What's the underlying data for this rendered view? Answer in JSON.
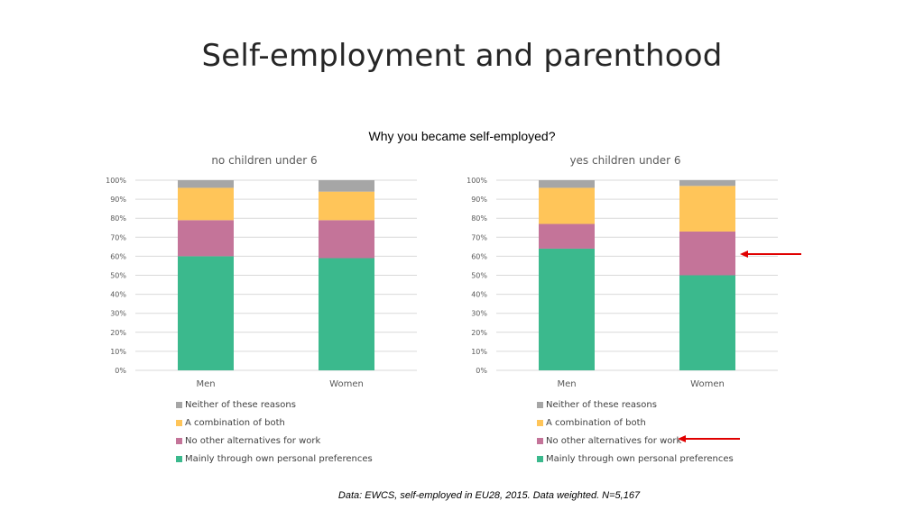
{
  "slide": {
    "title": "Self-employment and parenthood",
    "question": "Why you became self-employed?",
    "footnote": "Data: EWCS, self-employed in EU28, 2015. Data weighted. N=5,167"
  },
  "colors": {
    "own_preferences": "#3bb98d",
    "no_alternatives": "#c47499",
    "combination": "#ffc559",
    "neither": "#a6a6a6",
    "arrow": "#e00000"
  },
  "chart_data": [
    {
      "type": "bar",
      "stacked": "percent",
      "title": "no children under 6",
      "categories": [
        "Men",
        "Women"
      ],
      "y_ticks": [
        "0%",
        "10%",
        "20%",
        "30%",
        "40%",
        "50%",
        "60%",
        "70%",
        "80%",
        "90%",
        "100%"
      ],
      "ylim": [
        0,
        100
      ],
      "grid": true,
      "legend_position": "bottom",
      "series": [
        {
          "name": "Mainly through own personal preferences",
          "values": [
            60,
            59
          ]
        },
        {
          "name": "No other alternatives for work",
          "values": [
            19,
            20
          ]
        },
        {
          "name": "A combination of both",
          "values": [
            17,
            15
          ]
        },
        {
          "name": "Neither of these reasons",
          "values": [
            4,
            6
          ]
        }
      ]
    },
    {
      "type": "bar",
      "stacked": "percent",
      "title": "yes children under 6",
      "categories": [
        "Men",
        "Women"
      ],
      "y_ticks": [
        "0%",
        "10%",
        "20%",
        "30%",
        "40%",
        "50%",
        "60%",
        "70%",
        "80%",
        "90%",
        "100%"
      ],
      "ylim": [
        0,
        100
      ],
      "grid": true,
      "legend_position": "bottom",
      "series": [
        {
          "name": "Mainly through own personal preferences",
          "values": [
            64,
            50
          ]
        },
        {
          "name": "No other alternatives for work",
          "values": [
            13,
            23
          ]
        },
        {
          "name": "A combination of both",
          "values": [
            19,
            24
          ]
        },
        {
          "name": "Neither of these reasons",
          "values": [
            4,
            3
          ]
        }
      ]
    }
  ],
  "legend": [
    {
      "label": "Neither of these reasons",
      "color_key": "neither"
    },
    {
      "label": "A combination of both",
      "color_key": "combination"
    },
    {
      "label": "No other alternatives for work",
      "color_key": "no_alternatives"
    },
    {
      "label": "Mainly through own personal preferences",
      "color_key": "own_preferences"
    }
  ]
}
